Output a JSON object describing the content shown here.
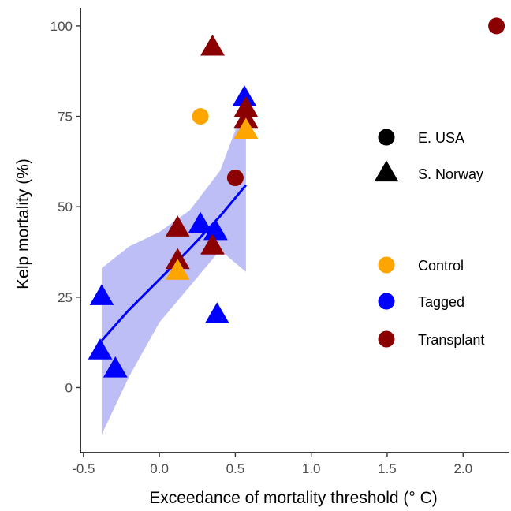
{
  "chart_data": {
    "type": "scatter",
    "xlabel": "Exceedance of mortality threshold (° C)",
    "ylabel": "Kelp mortality (%)",
    "xlim": [
      -0.52,
      2.3
    ],
    "ylim": [
      -18,
      105
    ],
    "x_ticks": [
      {
        "value": -0.5,
        "label": "-0.5"
      },
      {
        "value": 0.0,
        "label": "0.0"
      },
      {
        "value": 0.5,
        "label": "0.5"
      },
      {
        "value": 1.0,
        "label": "1.0"
      },
      {
        "value": 1.5,
        "label": "1.5"
      },
      {
        "value": 2.0,
        "label": "2.0"
      }
    ],
    "y_ticks": [
      {
        "value": 0,
        "label": "0"
      },
      {
        "value": 25,
        "label": "25"
      },
      {
        "value": 50,
        "label": "50"
      },
      {
        "value": 75,
        "label": "75"
      },
      {
        "value": 100,
        "label": "100"
      }
    ],
    "grid": false,
    "legend_position": "right",
    "shape_legend": [
      {
        "shape": "circle",
        "label": "E. USA"
      },
      {
        "shape": "triangle",
        "label": "S. Norway"
      }
    ],
    "color_legend": [
      {
        "group": "control",
        "label": "Control",
        "color": "#FFA500"
      },
      {
        "group": "tagged",
        "label": "Tagged",
        "color": "#0000FF"
      },
      {
        "group": "transplant",
        "label": "Transplant",
        "color": "#8B0000"
      }
    ],
    "points": [
      {
        "x": 2.22,
        "y": 100,
        "shape": "circle",
        "group": "transplant"
      },
      {
        "x": 0.27,
        "y": 75,
        "shape": "circle",
        "group": "control"
      },
      {
        "x": 0.5,
        "y": 58,
        "shape": "circle",
        "group": "transplant"
      },
      {
        "x": 0.35,
        "y": 94,
        "shape": "triangle",
        "group": "transplant"
      },
      {
        "x": 0.56,
        "y": 80,
        "shape": "triangle",
        "group": "tagged"
      },
      {
        "x": 0.57,
        "y": 77,
        "shape": "triangle",
        "group": "transplant"
      },
      {
        "x": 0.57,
        "y": 74,
        "shape": "triangle",
        "group": "transplant"
      },
      {
        "x": 0.57,
        "y": 71,
        "shape": "triangle",
        "group": "control"
      },
      {
        "x": 0.27,
        "y": 45,
        "shape": "triangle",
        "group": "tagged"
      },
      {
        "x": 0.37,
        "y": 43,
        "shape": "triangle",
        "group": "tagged"
      },
      {
        "x": 0.35,
        "y": 39,
        "shape": "triangle",
        "group": "transplant"
      },
      {
        "x": 0.12,
        "y": 44,
        "shape": "triangle",
        "group": "transplant"
      },
      {
        "x": 0.12,
        "y": 35,
        "shape": "triangle",
        "group": "transplant"
      },
      {
        "x": 0.12,
        "y": 32,
        "shape": "triangle",
        "group": "control"
      },
      {
        "x": 0.38,
        "y": 20,
        "shape": "triangle",
        "group": "tagged"
      },
      {
        "x": -0.38,
        "y": 25,
        "shape": "triangle",
        "group": "tagged"
      },
      {
        "x": -0.39,
        "y": 10,
        "shape": "triangle",
        "group": "tagged"
      },
      {
        "x": -0.29,
        "y": 5,
        "shape": "triangle",
        "group": "tagged"
      }
    ],
    "regression": {
      "color": "#0000FF",
      "band_color": "#B3B3F5",
      "x": [
        -0.38,
        -0.2,
        0.0,
        0.2,
        0.4,
        0.57
      ],
      "fit": [
        13,
        21.5,
        29.9,
        38.4,
        47.4,
        56
      ],
      "lower": [
        -13,
        3,
        18,
        28,
        38,
        32
      ],
      "upper": [
        33,
        39,
        43,
        49,
        60,
        79
      ]
    }
  }
}
